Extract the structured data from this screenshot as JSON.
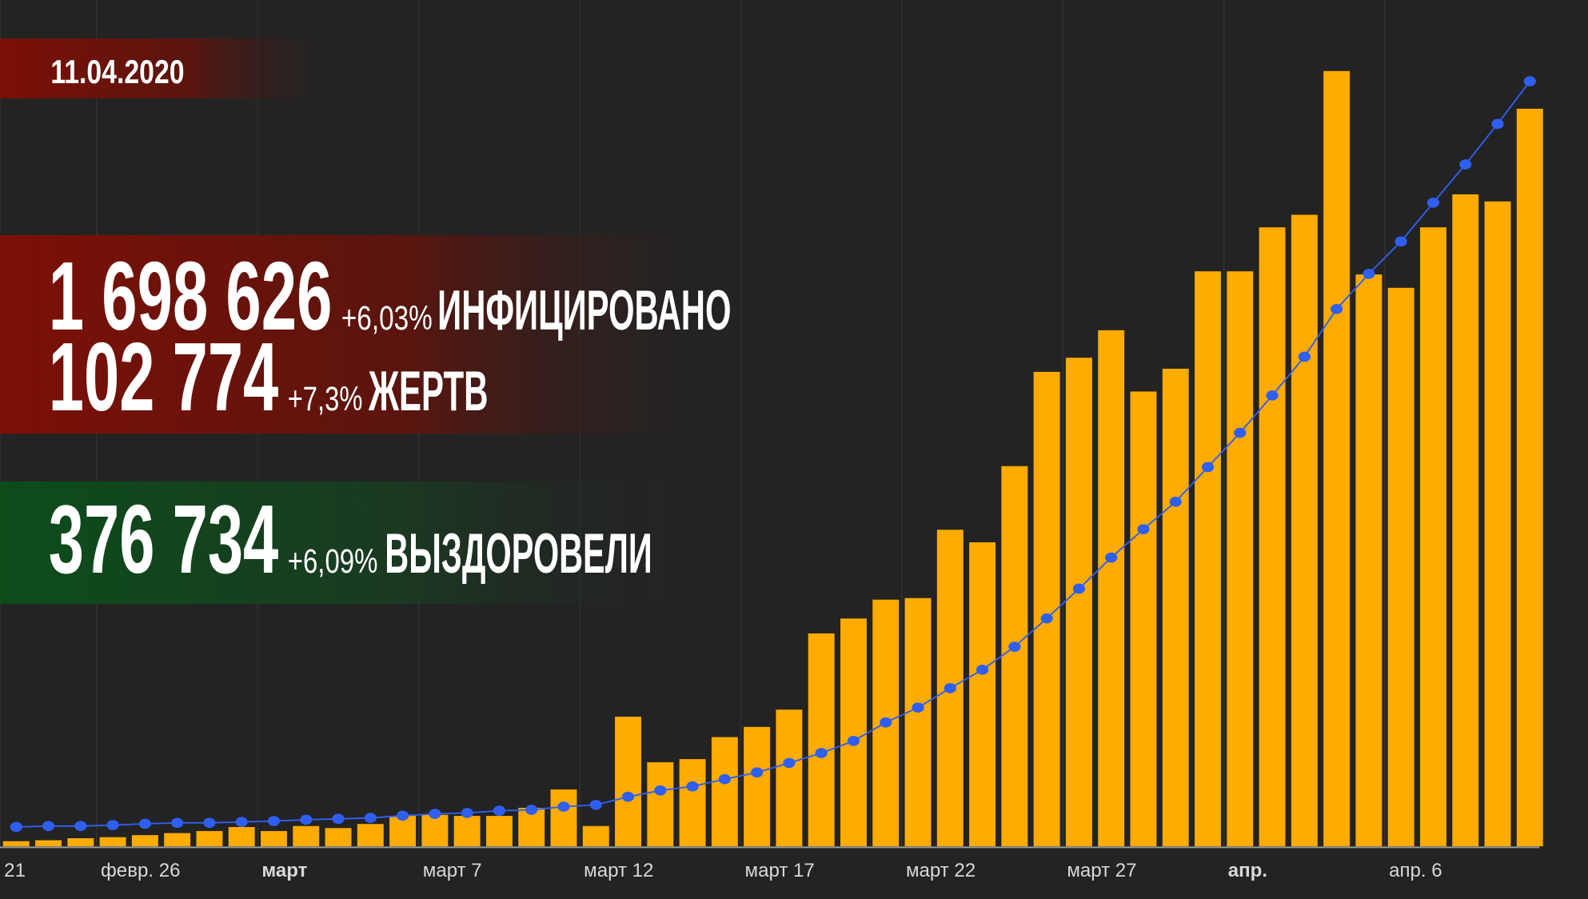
{
  "date": "11.04.2020",
  "stats": [
    {
      "value": "1 698 626",
      "change": "+6,03%",
      "label": "ИНФИЦИРОВАНО"
    },
    {
      "value": "102 774",
      "change": "+7,3%",
      "label": "ЖЕРТВ"
    },
    {
      "value": "376 734",
      "change": "+6,09%",
      "label": "ВЫЗДОРОВЕЛИ"
    }
  ],
  "chart_data": {
    "type": "bar",
    "categories": [
      "21",
      null,
      null,
      "февр. 26",
      null,
      null,
      null,
      null,
      "март",
      null,
      null,
      null,
      null,
      "март 7",
      null,
      null,
      null,
      null,
      "март 12",
      null,
      null,
      null,
      null,
      "март 17",
      null,
      null,
      null,
      null,
      "март 22",
      null,
      null,
      null,
      null,
      "март 27",
      null,
      null,
      null,
      null,
      "апр.",
      null,
      null,
      null,
      null,
      "апр. 6",
      null,
      null,
      null,
      null
    ],
    "series": [
      {
        "type": "bar",
        "color": "#ffab00",
        "values": [
          650,
          770,
          1030,
          1160,
          1420,
          1680,
          1940,
          2450,
          1940,
          2580,
          2320,
          2840,
          3870,
          4000,
          3870,
          3870,
          4900,
          7230,
          2580,
          16500,
          10700,
          11100,
          13900,
          15200,
          17400,
          27100,
          29000,
          31400,
          31600,
          40300,
          38700,
          48400,
          60400,
          62200,
          65700,
          57900,
          60800,
          73200,
          73200,
          78800,
          80400,
          98700,
          72800,
          71100,
          78800,
          83000,
          82100,
          93900
        ]
      },
      {
        "type": "line",
        "axis": "y2",
        "color": "#2f5ff0",
        "values": [
          43000,
          45000,
          45000,
          47000,
          50000,
          52000,
          52000,
          54000,
          56000,
          59000,
          61000,
          63000,
          68000,
          72000,
          74000,
          79000,
          81000,
          88000,
          92000,
          110000,
          124000,
          133000,
          149000,
          164000,
          185000,
          207000,
          234000,
          275000,
          308000,
          351000,
          392000,
          443000,
          506000,
          572000,
          641000,
          704000,
          765000,
          842000,
          918000,
          1001000,
          1087000,
          1193000,
          1271000,
          1343000,
          1429000,
          1514000,
          1604000,
          1698626
        ]
      }
    ],
    "ylim": [
      0,
      100000
    ],
    "y2lim": [
      0,
      1744000
    ]
  }
}
